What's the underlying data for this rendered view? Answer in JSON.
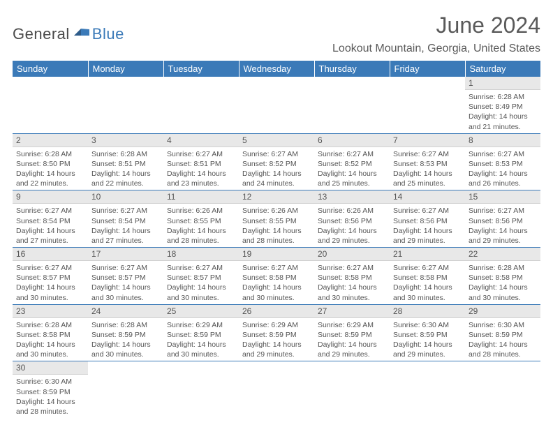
{
  "logo": {
    "part1": "General",
    "part2": "Blue"
  },
  "title": "June 2024",
  "location": "Lookout Mountain, Georgia, United States",
  "colors": {
    "header_bg": "#3b7ab8",
    "header_text": "#ffffff",
    "daynum_bg": "#e8e8e8",
    "border": "#3b7ab8",
    "text": "#555555",
    "logo_gray": "#4a4a4a",
    "logo_blue": "#3b7ab8"
  },
  "weekdays": [
    "Sunday",
    "Monday",
    "Tuesday",
    "Wednesday",
    "Thursday",
    "Friday",
    "Saturday"
  ],
  "weeks": [
    [
      null,
      null,
      null,
      null,
      null,
      null,
      {
        "d": "1",
        "sr": "6:28 AM",
        "ss": "8:49 PM",
        "dl": "14 hours and 21 minutes."
      }
    ],
    [
      {
        "d": "2",
        "sr": "6:28 AM",
        "ss": "8:50 PM",
        "dl": "14 hours and 22 minutes."
      },
      {
        "d": "3",
        "sr": "6:28 AM",
        "ss": "8:51 PM",
        "dl": "14 hours and 22 minutes."
      },
      {
        "d": "4",
        "sr": "6:27 AM",
        "ss": "8:51 PM",
        "dl": "14 hours and 23 minutes."
      },
      {
        "d": "5",
        "sr": "6:27 AM",
        "ss": "8:52 PM",
        "dl": "14 hours and 24 minutes."
      },
      {
        "d": "6",
        "sr": "6:27 AM",
        "ss": "8:52 PM",
        "dl": "14 hours and 25 minutes."
      },
      {
        "d": "7",
        "sr": "6:27 AM",
        "ss": "8:53 PM",
        "dl": "14 hours and 25 minutes."
      },
      {
        "d": "8",
        "sr": "6:27 AM",
        "ss": "8:53 PM",
        "dl": "14 hours and 26 minutes."
      }
    ],
    [
      {
        "d": "9",
        "sr": "6:27 AM",
        "ss": "8:54 PM",
        "dl": "14 hours and 27 minutes."
      },
      {
        "d": "10",
        "sr": "6:27 AM",
        "ss": "8:54 PM",
        "dl": "14 hours and 27 minutes."
      },
      {
        "d": "11",
        "sr": "6:26 AM",
        "ss": "8:55 PM",
        "dl": "14 hours and 28 minutes."
      },
      {
        "d": "12",
        "sr": "6:26 AM",
        "ss": "8:55 PM",
        "dl": "14 hours and 28 minutes."
      },
      {
        "d": "13",
        "sr": "6:26 AM",
        "ss": "8:56 PM",
        "dl": "14 hours and 29 minutes."
      },
      {
        "d": "14",
        "sr": "6:27 AM",
        "ss": "8:56 PM",
        "dl": "14 hours and 29 minutes."
      },
      {
        "d": "15",
        "sr": "6:27 AM",
        "ss": "8:56 PM",
        "dl": "14 hours and 29 minutes."
      }
    ],
    [
      {
        "d": "16",
        "sr": "6:27 AM",
        "ss": "8:57 PM",
        "dl": "14 hours and 30 minutes."
      },
      {
        "d": "17",
        "sr": "6:27 AM",
        "ss": "8:57 PM",
        "dl": "14 hours and 30 minutes."
      },
      {
        "d": "18",
        "sr": "6:27 AM",
        "ss": "8:57 PM",
        "dl": "14 hours and 30 minutes."
      },
      {
        "d": "19",
        "sr": "6:27 AM",
        "ss": "8:58 PM",
        "dl": "14 hours and 30 minutes."
      },
      {
        "d": "20",
        "sr": "6:27 AM",
        "ss": "8:58 PM",
        "dl": "14 hours and 30 minutes."
      },
      {
        "d": "21",
        "sr": "6:27 AM",
        "ss": "8:58 PM",
        "dl": "14 hours and 30 minutes."
      },
      {
        "d": "22",
        "sr": "6:28 AM",
        "ss": "8:58 PM",
        "dl": "14 hours and 30 minutes."
      }
    ],
    [
      {
        "d": "23",
        "sr": "6:28 AM",
        "ss": "8:58 PM",
        "dl": "14 hours and 30 minutes."
      },
      {
        "d": "24",
        "sr": "6:28 AM",
        "ss": "8:59 PM",
        "dl": "14 hours and 30 minutes."
      },
      {
        "d": "25",
        "sr": "6:29 AM",
        "ss": "8:59 PM",
        "dl": "14 hours and 30 minutes."
      },
      {
        "d": "26",
        "sr": "6:29 AM",
        "ss": "8:59 PM",
        "dl": "14 hours and 29 minutes."
      },
      {
        "d": "27",
        "sr": "6:29 AM",
        "ss": "8:59 PM",
        "dl": "14 hours and 29 minutes."
      },
      {
        "d": "28",
        "sr": "6:30 AM",
        "ss": "8:59 PM",
        "dl": "14 hours and 29 minutes."
      },
      {
        "d": "29",
        "sr": "6:30 AM",
        "ss": "8:59 PM",
        "dl": "14 hours and 28 minutes."
      }
    ],
    [
      {
        "d": "30",
        "sr": "6:30 AM",
        "ss": "8:59 PM",
        "dl": "14 hours and 28 minutes."
      },
      null,
      null,
      null,
      null,
      null,
      null
    ]
  ],
  "labels": {
    "sunrise": "Sunrise:",
    "sunset": "Sunset:",
    "daylight": "Daylight:"
  }
}
